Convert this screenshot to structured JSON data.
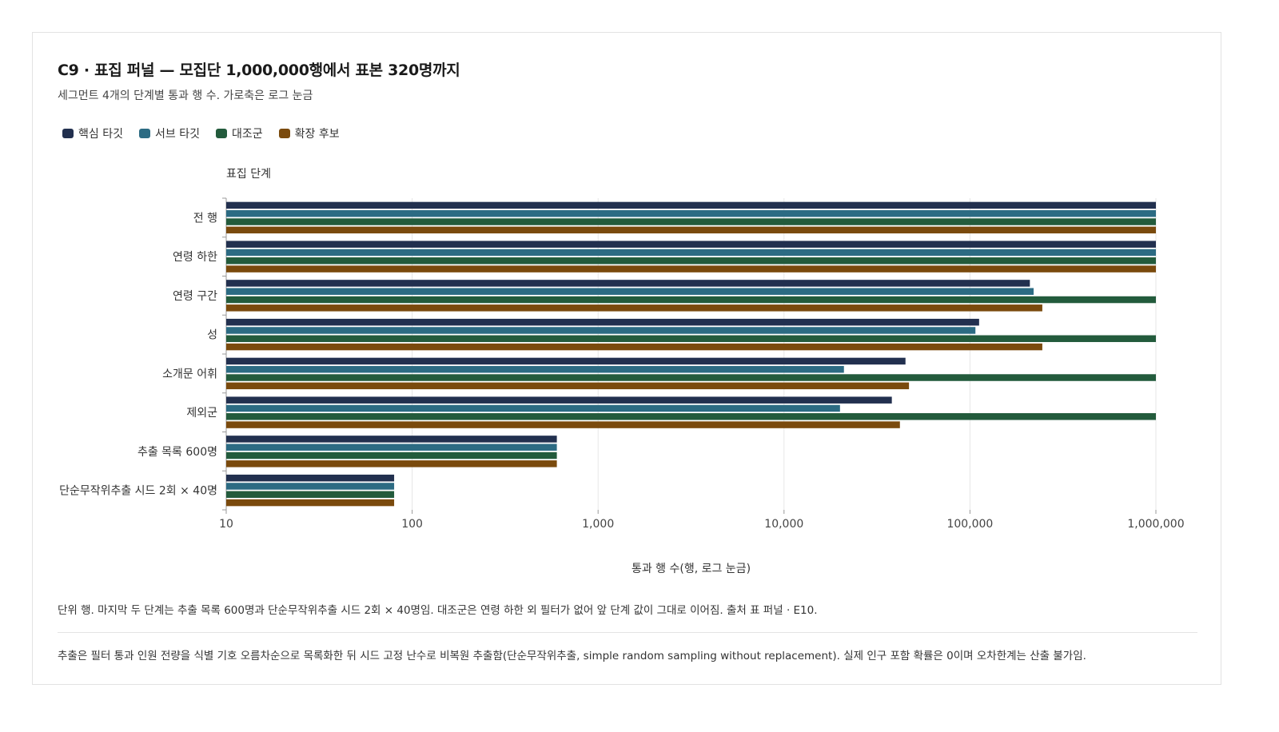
{
  "title": "C9 · 표집 퍼널 — 모집단 1,000,000행에서 표본 320명까지",
  "subtitle": "세그먼트 4개의 단계별 통과 행 수. 가로축은 로그 눈금",
  "colors": {
    "core": "#22304f",
    "sub": "#2c6b83",
    "control": "#235b3c",
    "expansion": "#7a4a0d",
    "grid": "#e6e6e6",
    "axis": "#999999"
  },
  "chart_data": {
    "type": "bar",
    "orientation": "horizontal",
    "ylabel": "표집 단계",
    "xlabel": "통과 행 수(행, 로그 눈금)",
    "x_scale": "log",
    "xlim": [
      10,
      1000000
    ],
    "x_ticks": [
      10,
      100,
      1000,
      10000,
      100000,
      1000000
    ],
    "x_tick_labels": [
      "10",
      "100",
      "1,000",
      "10,000",
      "100,000",
      "1,000,000"
    ],
    "grid": true,
    "legend_position": "top-left",
    "categories": [
      "전 행",
      "연령 하한",
      "연령 구간",
      "성",
      "소개문 어휘",
      "제외군",
      "추출 목록 600명",
      "단순무작위추출 시드 2회 × 40명"
    ],
    "series": [
      {
        "name": "핵심 타깃",
        "color_key": "core",
        "values": [
          1000000,
          1000000,
          210000,
          112000,
          45000,
          38000,
          600,
          80
        ]
      },
      {
        "name": "서브 타깃",
        "color_key": "sub",
        "values": [
          1000000,
          1000000,
          220000,
          107000,
          21000,
          20000,
          600,
          80
        ]
      },
      {
        "name": "대조군",
        "color_key": "control",
        "values": [
          1000000,
          1000000,
          1000000,
          1000000,
          1000000,
          1000000,
          600,
          80
        ]
      },
      {
        "name": "확장 후보",
        "color_key": "expansion",
        "values": [
          1000000,
          1000000,
          245000,
          245000,
          47000,
          42000,
          600,
          80
        ]
      }
    ]
  },
  "notes": {
    "line1": "단위 행. 마지막 두 단계는 추출 목록 600명과 단순무작위추출 시드 2회 × 40명임. 대조군은 연령 하한 외 필터가 없어 앞 단계 값이 그대로 이어짐. 출처 표 퍼널 · E10.",
    "line2": "추출은 필터 통과 인원 전량을 식별 기호 오름차순으로 목록화한 뒤 시드 고정 난수로 비복원 추출함(단순무작위추출, simple random sampling without replacement). 실제 인구 포함 확률은 0이며 오차한계는 산출 불가임."
  }
}
